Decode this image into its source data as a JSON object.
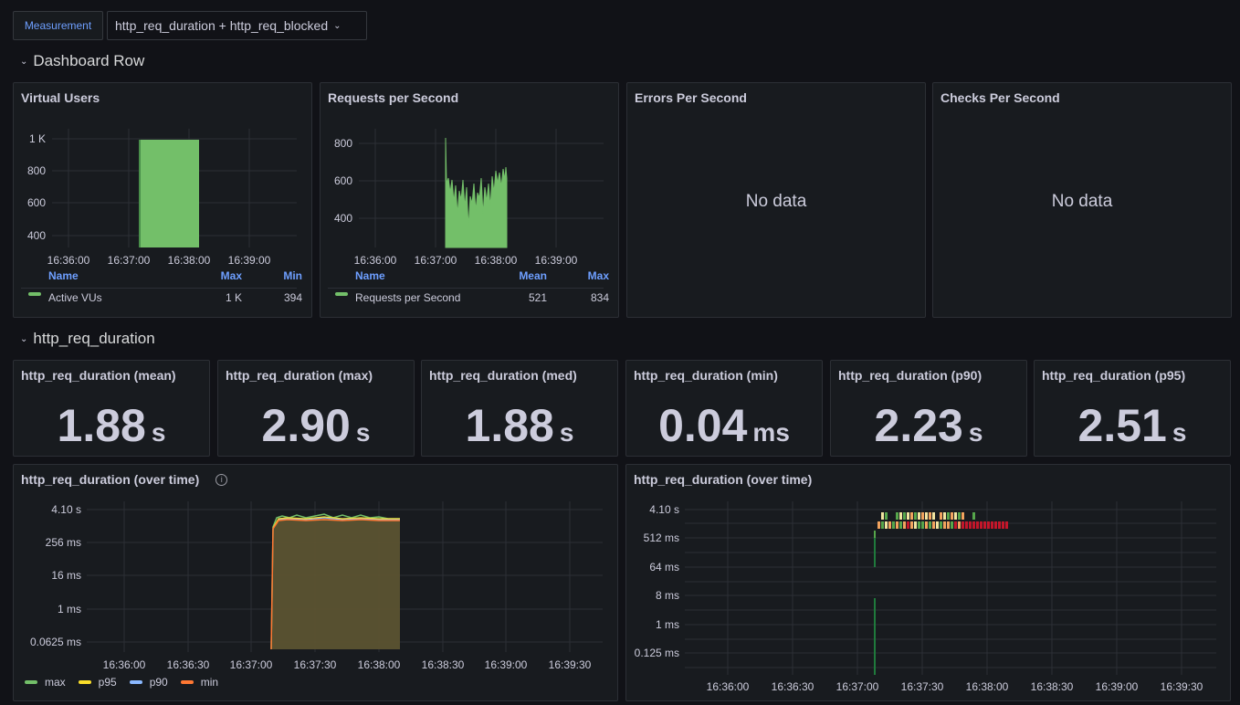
{
  "variables": {
    "label": "Measurement",
    "value": "http_req_duration + http_req_blocked"
  },
  "rows": [
    {
      "title": "Dashboard Row"
    },
    {
      "title": "http_req_duration"
    }
  ],
  "panels": {
    "vus": {
      "title": "Virtual Users",
      "y_ticks": [
        "1 K",
        "800",
        "600",
        "400"
      ],
      "x_ticks": [
        "16:36:00",
        "16:37:00",
        "16:38:00",
        "16:39:00"
      ],
      "legend": {
        "headers": [
          "Name",
          "Max",
          "Min"
        ],
        "row": [
          "Active VUs",
          "1 K",
          "394"
        ]
      }
    },
    "rps": {
      "title": "Requests per Second",
      "y_ticks": [
        "800",
        "600",
        "400"
      ],
      "x_ticks": [
        "16:36:00",
        "16:37:00",
        "16:38:00",
        "16:39:00"
      ],
      "legend": {
        "headers": [
          "Name",
          "Mean",
          "Max"
        ],
        "row": [
          "Requests per Second",
          "521",
          "834"
        ]
      }
    },
    "eps": {
      "title": "Errors Per Second",
      "nodata": "No data"
    },
    "cps": {
      "title": "Checks Per Second",
      "nodata": "No data"
    },
    "stats": [
      {
        "title": "http_req_duration (mean)",
        "value": "1.88",
        "unit": "s"
      },
      {
        "title": "http_req_duration (max)",
        "value": "2.90",
        "unit": "s"
      },
      {
        "title": "http_req_duration (med)",
        "value": "1.88",
        "unit": "s"
      },
      {
        "title": "http_req_duration (min)",
        "value": "0.04",
        "unit": "ms"
      },
      {
        "title": "http_req_duration (p90)",
        "value": "2.23",
        "unit": "s"
      },
      {
        "title": "http_req_duration (p95)",
        "value": "2.51",
        "unit": "s"
      }
    ],
    "timeseries": {
      "title": "http_req_duration (over time)",
      "y_ticks": [
        "4.10 s",
        "256 ms",
        "16 ms",
        "1 ms",
        "0.0625 ms"
      ],
      "x_ticks": [
        "16:36:00",
        "16:36:30",
        "16:37:00",
        "16:37:30",
        "16:38:00",
        "16:38:30",
        "16:39:00",
        "16:39:30"
      ],
      "legend": [
        {
          "name": "max",
          "color": "#73bf69"
        },
        {
          "name": "p95",
          "color": "#fade2a"
        },
        {
          "name": "p90",
          "color": "#8ab8ff"
        },
        {
          "name": "min",
          "color": "#ff7833"
        }
      ]
    },
    "heatmap": {
      "title": "http_req_duration (over time)",
      "y_ticks": [
        "4.10 s",
        "512 ms",
        "64 ms",
        "8 ms",
        "1 ms",
        "0.125 ms"
      ],
      "x_ticks": [
        "16:36:00",
        "16:36:30",
        "16:37:00",
        "16:37:30",
        "16:38:00",
        "16:38:30",
        "16:39:00",
        "16:39:30"
      ]
    }
  },
  "colors": {
    "green": "#73bf69",
    "heat_dark_green": "#1f7a3c",
    "heat_green": "#56a64b",
    "heat_yellow": "#f2e5a0",
    "heat_orange": "#f2a35e",
    "heat_red": "#c4162a"
  }
}
